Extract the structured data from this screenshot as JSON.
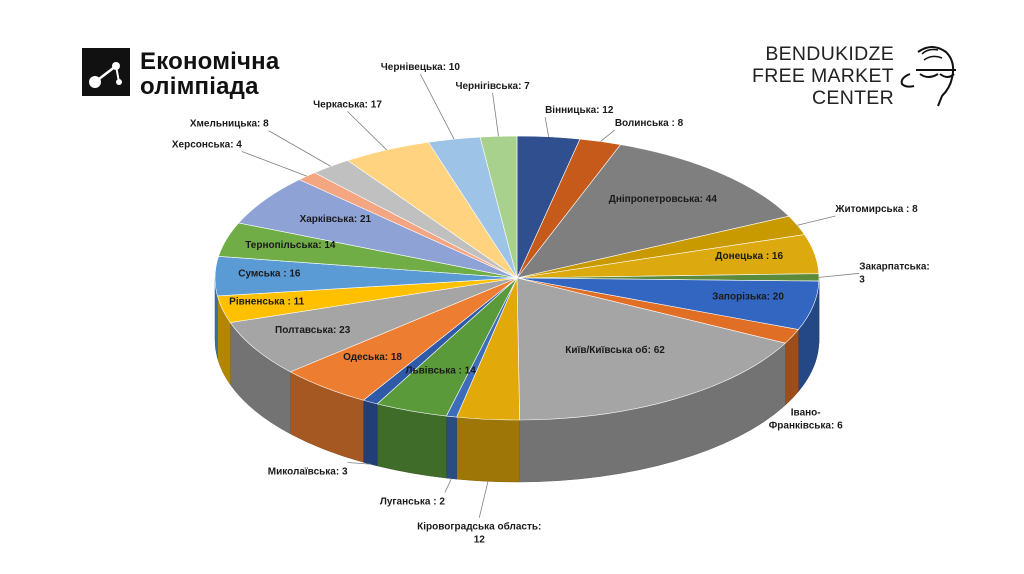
{
  "logos": {
    "olympiad_line1": "Економічна",
    "olympiad_line2": "олімпіада",
    "bendukidze_line1": "BENDUKIDZE",
    "bendukidze_line2": "FREE MARKET",
    "bendukidze_line3": "CENTER"
  },
  "chart_data": {
    "type": "pie",
    "style": "3d",
    "legend": "none",
    "slices": [
      {
        "name": "Вінницька",
        "value": 12,
        "label": "Вінницька: 12",
        "color": "#2f4f8f"
      },
      {
        "name": "Волинська",
        "value": 8,
        "label": "Волинська : 8",
        "color": "#c55a1a"
      },
      {
        "name": "Дніпропетровська",
        "value": 44,
        "label": "Дніпропетровська: 44",
        "color": "#7f7f7f"
      },
      {
        "name": "Житомирська",
        "value": 8,
        "label": "Житомирська : 8",
        "color": "#c99a00"
      },
      {
        "name": "Донецька",
        "value": 16,
        "label": "Донецька : 16",
        "color": "#dca90e"
      },
      {
        "name": "Закарпатська",
        "value": 3,
        "label": "Закарпатська:",
        "label2": "3",
        "color": "#5a8a3a"
      },
      {
        "name": "Запорізька",
        "value": 20,
        "label": "Запорізька: 20",
        "color": "#3366c0"
      },
      {
        "name": "Івано-Франківська",
        "value": 6,
        "label": "Івано-",
        "label2": "Франківська: 6",
        "color": "#e06e25"
      },
      {
        "name": "Київ/Київська об",
        "value": 62,
        "label": "Київ/Київська об: 62",
        "color": "#a5a5a5"
      },
      {
        "name": "Кіровоградська область",
        "value": 12,
        "label": "Кіровоградська область:",
        "label2": "12",
        "color": "#e2a90a"
      },
      {
        "name": "Луганська",
        "value": 2,
        "label": "Луганська : 2",
        "color": "#3d6cb8"
      },
      {
        "name": "Львівська",
        "value": 14,
        "label": "Львівська : 14",
        "color": "#5a9a3a"
      },
      {
        "name": "Миколаївська",
        "value": 3,
        "label": "Миколаївська: 3",
        "color": "#2f5aa8"
      },
      {
        "name": "Одеська",
        "value": 18,
        "label": "Одеська: 18",
        "color": "#ed7d31"
      },
      {
        "name": "Полтавська",
        "value": 23,
        "label": "Полтавська: 23",
        "color": "#a5a5a5"
      },
      {
        "name": "Рівненська",
        "value": 11,
        "label": "Рівненська : 11",
        "color": "#ffc000"
      },
      {
        "name": "Сумська",
        "value": 16,
        "label": "Сумська : 16",
        "color": "#5b9bd5"
      },
      {
        "name": "Тернопільська",
        "value": 14,
        "label": "Тернопільська: 14",
        "color": "#70ad47"
      },
      {
        "name": "Харківська",
        "value": 21,
        "label": "Харківська: 21",
        "color": "#8ea2d6"
      },
      {
        "name": "Херсонська",
        "value": 4,
        "label": "Херсонська: 4",
        "color": "#f4a582"
      },
      {
        "name": "Хмельницька",
        "value": 8,
        "label": "Хмельницька: 8",
        "color": "#c0c0c0"
      },
      {
        "name": "Черкаська",
        "value": 17,
        "label": "Черкаська: 17",
        "color": "#ffd37f"
      },
      {
        "name": "Чернівецька",
        "value": 10,
        "label": "Чернівецька: 10",
        "color": "#9dc3e6"
      },
      {
        "name": "Чернігівська",
        "value": 7,
        "label": "Чернігівська: 7",
        "color": "#a9d18e"
      }
    ]
  }
}
